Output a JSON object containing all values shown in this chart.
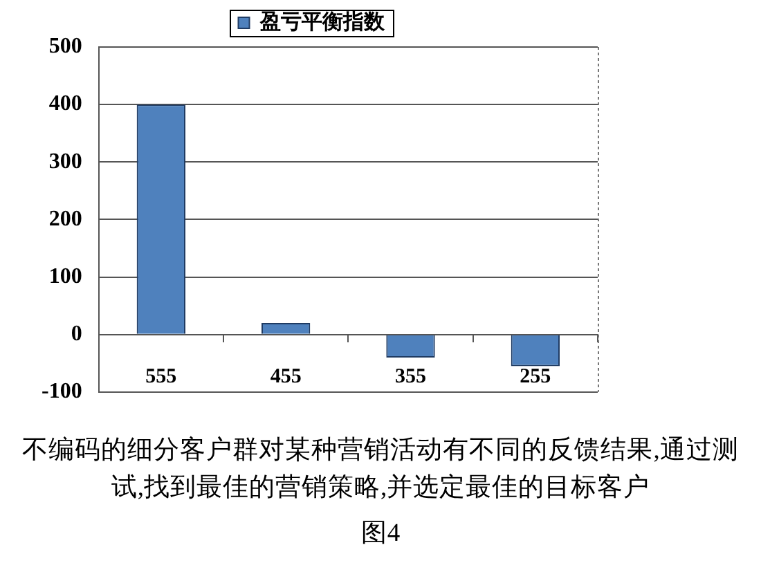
{
  "chart_data": {
    "type": "bar",
    "categories": [
      "555",
      "455",
      "355",
      "255"
    ],
    "series": [
      {
        "name": "盈亏平衡指数",
        "color": "#4f81bd",
        "values": [
          400,
          20,
          -40,
          -55
        ]
      }
    ],
    "ylim": [
      -100,
      500
    ],
    "yticks": [
      -100,
      0,
      100,
      200,
      300,
      400,
      500
    ],
    "grid": "y",
    "legend": "top",
    "annotations": [
      "不编码的细分客户群对某种营销活动有不同的反馈结果,通过测试,找到最佳的营销策略,并选定最佳的目标客户",
      "图4"
    ]
  }
}
